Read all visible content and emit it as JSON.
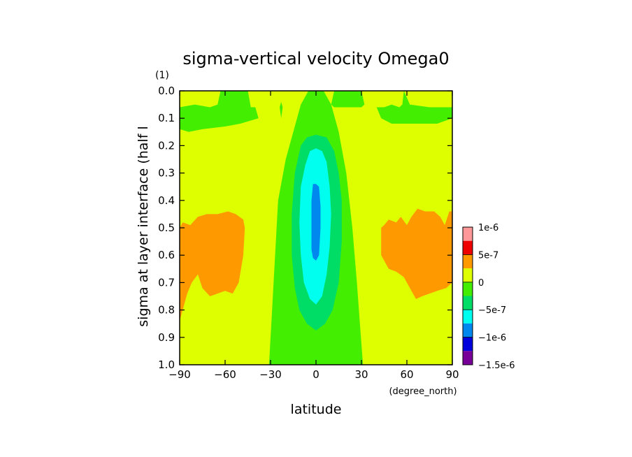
{
  "chart_data": {
    "type": "heatmap",
    "title": "sigma-vertical velocity Omega0",
    "xlabel": "latitude",
    "xunits": "(degree_north)",
    "ylabel": "sigma at layer interface (half l",
    "yunits": "(1)",
    "xlim": [
      -90,
      90
    ],
    "ylim": [
      1.0,
      0.0
    ],
    "xticks": [
      -90,
      -60,
      -30,
      0,
      30,
      60,
      90
    ],
    "xtick_labels": [
      "−90",
      "−60",
      "−30",
      "0",
      "30",
      "60",
      "90"
    ],
    "yticks": [
      0.0,
      0.1,
      0.2,
      0.3,
      0.4,
      0.5,
      0.6,
      0.7,
      0.8,
      0.9,
      1.0
    ],
    "ytick_labels": [
      "0.0",
      "0.1",
      "0.2",
      "0.3",
      "0.4",
      "0.5",
      "0.6",
      "0.7",
      "0.8",
      "0.9",
      "1.0"
    ],
    "colorbar": {
      "labels": [
        "1e-6",
        "5e-7",
        "0",
        "−5e-7",
        "−1e-6",
        "−1.5e-6"
      ],
      "label_values": [
        1e-06,
        5e-07,
        0,
        -5e-07,
        -1e-06,
        -1.5e-06
      ],
      "bins": [
        {
          "lo": 7.5e-07,
          "hi": 1e-06,
          "color": "#ff9999"
        },
        {
          "lo": 5e-07,
          "hi": 7.5e-07,
          "color": "#ee0000"
        },
        {
          "lo": 2.5e-07,
          "hi": 5e-07,
          "color": "#ff9900"
        },
        {
          "lo": 0,
          "hi": 2.5e-07,
          "color": "#ddff00"
        },
        {
          "lo": -2.5e-07,
          "hi": 0,
          "color": "#44ee00"
        },
        {
          "lo": -5e-07,
          "hi": -2.5e-07,
          "color": "#00dd66"
        },
        {
          "lo": -7.5e-07,
          "hi": -5e-07,
          "color": "#00ffee"
        },
        {
          "lo": -1e-06,
          "hi": -7.5e-07,
          "color": "#0088ee"
        },
        {
          "lo": -1.25e-06,
          "hi": -1e-06,
          "color": "#0000dd"
        },
        {
          "lo": -1.5e-06,
          "hi": -1.25e-06,
          "color": "#770099"
        }
      ]
    },
    "regions": [
      {
        "name": "equatorial-ascent-green",
        "color": "#44ee00",
        "points": [
          [
            -31,
            1.0
          ],
          [
            -29,
            0.8
          ],
          [
            -27,
            0.6
          ],
          [
            -25,
            0.4
          ],
          [
            -20,
            0.25
          ],
          [
            -15,
            0.15
          ],
          [
            -10,
            0.05
          ],
          [
            -5,
            0.0
          ],
          [
            5,
            0.0
          ],
          [
            10,
            0.05
          ],
          [
            15,
            0.15
          ],
          [
            20,
            0.3
          ],
          [
            24,
            0.5
          ],
          [
            27,
            0.7
          ],
          [
            29,
            0.85
          ],
          [
            31,
            1.0
          ]
        ]
      },
      {
        "name": "high-latitude-green-left",
        "color": "#44ee00",
        "points": [
          [
            -90,
            0.06
          ],
          [
            -80,
            0.05
          ],
          [
            -70,
            0.06
          ],
          [
            -65,
            0.05
          ],
          [
            -63,
            0.0
          ],
          [
            -45,
            0.0
          ],
          [
            -43,
            0.06
          ],
          [
            -40,
            0.06
          ],
          [
            -38,
            0.1
          ],
          [
            -50,
            0.12
          ],
          [
            -60,
            0.13
          ],
          [
            -75,
            0.14
          ],
          [
            -84,
            0.15
          ],
          [
            -90,
            0.14
          ]
        ]
      },
      {
        "name": "green-blob-left",
        "color": "#44ee00",
        "points": [
          [
            -23,
            0.1
          ],
          [
            -24,
            0.06
          ],
          [
            -23,
            0.04
          ],
          [
            -22,
            0.06
          ]
        ]
      },
      {
        "name": "green-blob-right",
        "color": "#44ee00",
        "points": [
          [
            10,
            0.05
          ],
          [
            12,
            0.0
          ],
          [
            30,
            0.0
          ],
          [
            32,
            0.05
          ],
          [
            30,
            0.06
          ],
          [
            20,
            0.06
          ],
          [
            12,
            0.06
          ]
        ]
      },
      {
        "name": "high-latitude-green-right",
        "color": "#44ee00",
        "points": [
          [
            40,
            0.06
          ],
          [
            45,
            0.06
          ],
          [
            50,
            0.05
          ],
          [
            55,
            0.06
          ],
          [
            57,
            0.05
          ],
          [
            58,
            0.0
          ],
          [
            62,
            0.05
          ],
          [
            75,
            0.06
          ],
          [
            90,
            0.06
          ],
          [
            90,
            0.1
          ],
          [
            85,
            0.11
          ],
          [
            80,
            0.12
          ],
          [
            70,
            0.12
          ],
          [
            58,
            0.12
          ],
          [
            50,
            0.12
          ],
          [
            43,
            0.1
          ]
        ]
      },
      {
        "name": "middle-ascent-dark-green",
        "color": "#00dd66",
        "points": [
          [
            0,
            0.16
          ],
          [
            -6,
            0.17
          ],
          [
            -10,
            0.2
          ],
          [
            -14,
            0.3
          ],
          [
            -16,
            0.45
          ],
          [
            -16,
            0.6
          ],
          [
            -14,
            0.72
          ],
          [
            -11,
            0.8
          ],
          [
            -6,
            0.85
          ],
          [
            0,
            0.875
          ],
          [
            6,
            0.85
          ],
          [
            11,
            0.8
          ],
          [
            15,
            0.7
          ],
          [
            17,
            0.55
          ],
          [
            17,
            0.4
          ],
          [
            15,
            0.3
          ],
          [
            12,
            0.22
          ],
          [
            7,
            0.17
          ]
        ]
      },
      {
        "name": "core-ascent-cyan",
        "color": "#00ffee",
        "points": [
          [
            0,
            0.21
          ],
          [
            -4,
            0.22
          ],
          [
            -7,
            0.27
          ],
          [
            -10,
            0.35
          ],
          [
            -11,
            0.48
          ],
          [
            -10,
            0.6
          ],
          [
            -8,
            0.7
          ],
          [
            -4,
            0.76
          ],
          [
            0,
            0.78
          ],
          [
            4,
            0.75
          ],
          [
            7,
            0.67
          ],
          [
            9,
            0.57
          ],
          [
            10,
            0.45
          ],
          [
            9,
            0.35
          ],
          [
            7,
            0.26
          ],
          [
            4,
            0.22
          ]
        ]
      },
      {
        "name": "peak-ascent-blue",
        "color": "#0088ee",
        "points": [
          [
            0,
            0.34
          ],
          [
            -2,
            0.34
          ],
          [
            -3,
            0.4
          ],
          [
            -3,
            0.5
          ],
          [
            -3,
            0.58
          ],
          [
            -2,
            0.61
          ],
          [
            0,
            0.62
          ],
          [
            2,
            0.6
          ],
          [
            3,
            0.5
          ],
          [
            3,
            0.42
          ],
          [
            2,
            0.35
          ]
        ]
      },
      {
        "name": "descent-orange-left",
        "color": "#ff9900",
        "points": [
          [
            -90,
            0.5
          ],
          [
            -88,
            0.48
          ],
          [
            -83,
            0.49
          ],
          [
            -78,
            0.46
          ],
          [
            -72,
            0.45
          ],
          [
            -65,
            0.45
          ],
          [
            -58,
            0.44
          ],
          [
            -53,
            0.45
          ],
          [
            -48,
            0.47
          ],
          [
            -47,
            0.5
          ],
          [
            -48,
            0.6
          ],
          [
            -51,
            0.7
          ],
          [
            -55,
            0.74
          ],
          [
            -60,
            0.73
          ],
          [
            -65,
            0.74
          ],
          [
            -70,
            0.75
          ],
          [
            -75,
            0.72
          ],
          [
            -78,
            0.67
          ],
          [
            -82,
            0.7
          ],
          [
            -85,
            0.74
          ],
          [
            -88,
            0.8
          ],
          [
            -90,
            0.84
          ]
        ]
      },
      {
        "name": "descent-orange-right",
        "color": "#ff9900",
        "points": [
          [
            43,
            0.5
          ],
          [
            45,
            0.49
          ],
          [
            48,
            0.47
          ],
          [
            53,
            0.48
          ],
          [
            56,
            0.46
          ],
          [
            60,
            0.49
          ],
          [
            63,
            0.46
          ],
          [
            67,
            0.43
          ],
          [
            72,
            0.44
          ],
          [
            78,
            0.44
          ],
          [
            82,
            0.46
          ],
          [
            85,
            0.49
          ],
          [
            88,
            0.44
          ],
          [
            90,
            0.44
          ],
          [
            90,
            0.7
          ],
          [
            86,
            0.72
          ],
          [
            80,
            0.73
          ],
          [
            75,
            0.74
          ],
          [
            70,
            0.75
          ],
          [
            66,
            0.76
          ],
          [
            63,
            0.73
          ],
          [
            58,
            0.68
          ],
          [
            53,
            0.66
          ],
          [
            48,
            0.65
          ],
          [
            45,
            0.62
          ],
          [
            43,
            0.6
          ]
        ]
      }
    ],
    "background_color": "#ddff00"
  }
}
